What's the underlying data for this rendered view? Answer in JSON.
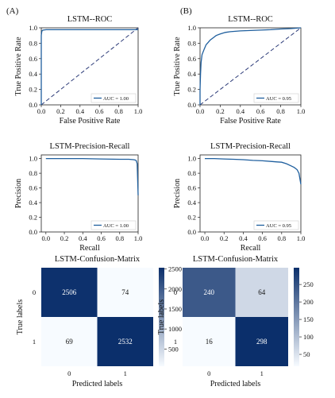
{
  "panels": [
    {
      "label": "(A)"
    },
    {
      "label": "(B)"
    }
  ],
  "chart_data": [
    {
      "type": "line",
      "panel": "(A)",
      "title": "LSTM--ROC",
      "xlabel": "False Positive Rate",
      "ylabel": "True Positive Rate",
      "xlim": [
        0,
        1
      ],
      "ylim": [
        0,
        1
      ],
      "xticks": [
        "0.0",
        "0.2",
        "0.4",
        "0.6",
        "0.8",
        "1.0"
      ],
      "yticks": [
        "0.0",
        "0.2",
        "0.4",
        "0.6",
        "0.8",
        "1.0"
      ],
      "legend": "AUC = 1.00",
      "legend_position": "lower-right",
      "diagonal": true,
      "series": [
        {
          "x": [
            0,
            0.0,
            0.005,
            0.01,
            0.02,
            0.05,
            0.1,
            0.2,
            0.4,
            0.6,
            0.8,
            1.0
          ],
          "y": [
            0,
            0.9,
            0.95,
            0.965,
            0.97,
            0.975,
            0.975,
            0.975,
            0.975,
            0.975,
            0.975,
            0.975
          ]
        }
      ]
    },
    {
      "type": "line",
      "panel": "(B)",
      "title": "LSTM--ROC",
      "xlabel": "False Positive Rate",
      "ylabel": "True Positive Rate",
      "xlim": [
        0,
        1
      ],
      "ylim": [
        0,
        1
      ],
      "xticks": [
        "0.0",
        "0.2",
        "0.4",
        "0.6",
        "0.8",
        "1.0"
      ],
      "yticks": [
        "0.0",
        "0.2",
        "0.4",
        "0.6",
        "0.8",
        "1.0"
      ],
      "legend": "AUC = 0.95",
      "legend_position": "lower-right",
      "diagonal": true,
      "series": [
        {
          "x": [
            0,
            0.0,
            0.005,
            0.01,
            0.02,
            0.04,
            0.06,
            0.08,
            0.1,
            0.13,
            0.16,
            0.2,
            0.25,
            0.3,
            0.4,
            0.5,
            0.6,
            0.7,
            0.8,
            0.9,
            1.0
          ],
          "y": [
            0,
            0.2,
            0.4,
            0.55,
            0.65,
            0.72,
            0.78,
            0.81,
            0.84,
            0.87,
            0.9,
            0.92,
            0.94,
            0.95,
            0.96,
            0.965,
            0.97,
            0.975,
            0.985,
            0.99,
            1.0
          ]
        }
      ]
    },
    {
      "type": "line",
      "panel": "(A)",
      "title": "LSTM-Precision-Recall",
      "xlabel": "Recall",
      "ylabel": "Precision",
      "xlim": [
        -0.05,
        1.0
      ],
      "ylim": [
        0,
        1.05
      ],
      "xticks": [
        "0.0",
        "0.2",
        "0.4",
        "0.6",
        "0.8",
        "1.0"
      ],
      "yticks": [
        "0.0",
        "0.2",
        "0.4",
        "0.6",
        "0.8",
        "1.0"
      ],
      "legend": "AUC = 1.00",
      "legend_position": "lower-right",
      "series": [
        {
          "x": [
            0,
            0.2,
            0.4,
            0.6,
            0.8,
            0.9,
            0.95,
            0.97,
            0.98,
            0.99,
            1.0
          ],
          "y": [
            1.0,
            1.0,
            1.0,
            0.995,
            0.99,
            0.99,
            0.985,
            0.98,
            0.97,
            0.93,
            0.5
          ]
        }
      ]
    },
    {
      "type": "line",
      "panel": "(B)",
      "title": "LSTM-Precision-Recall",
      "xlabel": "Recall",
      "ylabel": "Precision",
      "xlim": [
        -0.05,
        1.0
      ],
      "ylim": [
        0,
        1.05
      ],
      "xticks": [
        "0.0",
        "0.2",
        "0.4",
        "0.6",
        "0.8",
        "1.0"
      ],
      "yticks": [
        "0.0",
        "0.2",
        "0.4",
        "0.6",
        "0.8",
        "1.0"
      ],
      "legend": "AUC = 0.95",
      "legend_position": "lower-right",
      "series": [
        {
          "x": [
            0,
            0.1,
            0.2,
            0.3,
            0.4,
            0.5,
            0.6,
            0.7,
            0.75,
            0.8,
            0.85,
            0.9,
            0.93,
            0.96,
            0.98,
            1.0
          ],
          "y": [
            1.0,
            1.0,
            0.995,
            0.99,
            0.985,
            0.975,
            0.97,
            0.96,
            0.955,
            0.95,
            0.93,
            0.9,
            0.88,
            0.85,
            0.8,
            0.65
          ]
        }
      ]
    },
    {
      "type": "heatmap",
      "panel": "(A)",
      "title": "LSTM-Confusion-Matrix",
      "xlabel": "Predicted labels",
      "ylabel": "True labels",
      "categories": [
        "0",
        "1"
      ],
      "values": [
        [
          2506,
          74
        ],
        [
          69,
          2532
        ]
      ],
      "colorbar_range": [
        69,
        2532
      ],
      "colorbar_ticks": [
        "500",
        "1000",
        "1500",
        "2000",
        "2500"
      ]
    },
    {
      "type": "heatmap",
      "panel": "(B)",
      "title": "LSTM-Confusion-Matrix",
      "xlabel": "Predicted labels",
      "ylabel": "True labels",
      "categories": [
        "0",
        "1"
      ],
      "values": [
        [
          240,
          64
        ],
        [
          16,
          298
        ]
      ],
      "colorbar_range": [
        16,
        298
      ],
      "colorbar_ticks": [
        "50",
        "100",
        "150",
        "200",
        "250"
      ]
    }
  ],
  "colors": {
    "line": "#1f5f9e",
    "diagonal": "#2b3a78",
    "cmap_low": "#f7fbff",
    "cmap_high": "#0b2f6b"
  }
}
